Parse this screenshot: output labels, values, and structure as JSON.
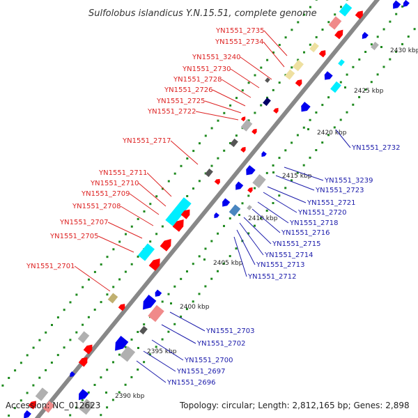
{
  "title": "Sulfolobus islandicus Y.N.15.51, complete genome",
  "accession": "Accession: NC_012623",
  "topology": "Topology: circular; Length: 2,812,165 bp; Genes: 2,898",
  "colors": {
    "backbone": "#888888",
    "forward_label": "#dd2222",
    "reverse_label": "#1a1aaa",
    "dots": "#1f8a1f",
    "red": "#ff0000",
    "blue": "#0000ee",
    "cyan": "#00eeff",
    "pink": "#f08a8a",
    "light_blue": "#4a86c0",
    "navy": "#000066",
    "yellow": "#eee0a0",
    "olive": "#c0b070",
    "gray": "#b0b0b0",
    "dark_gray": "#555555"
  },
  "ticks": [
    "2430 kbp",
    "2425 kbp",
    "2420 kbp",
    "2415 kbp",
    "2410 kbp",
    "2405 kbp",
    "2400 kbp",
    "2395 kbp",
    "2390 kbp"
  ],
  "forward_labels": [
    "YN1551_2735",
    "YN1551_2734",
    "YN1551_3240",
    "YN1551_2730",
    "YN1551_2728",
    "YN1551_2726",
    "YN1551_2725",
    "YN1551_2722",
    "YN1551_2717",
    "YN1551_2711",
    "YN1551_2710",
    "YN1551_2709",
    "YN1551_2708",
    "YN1551_2707",
    "YN1551_2705",
    "YN1551_2701"
  ],
  "reverse_labels": [
    "YN1551_2732",
    "YN1551_3239",
    "YN1551_2723",
    "YN1551_2721",
    "YN1551_2720",
    "YN1551_2718",
    "YN1551_2716",
    "YN1551_2715",
    "YN1551_2714",
    "YN1551_2713",
    "YN1551_2712",
    "YN1551_2703",
    "YN1551_2702",
    "YN1551_2700",
    "YN1551_2697",
    "YN1551_2696"
  ]
}
